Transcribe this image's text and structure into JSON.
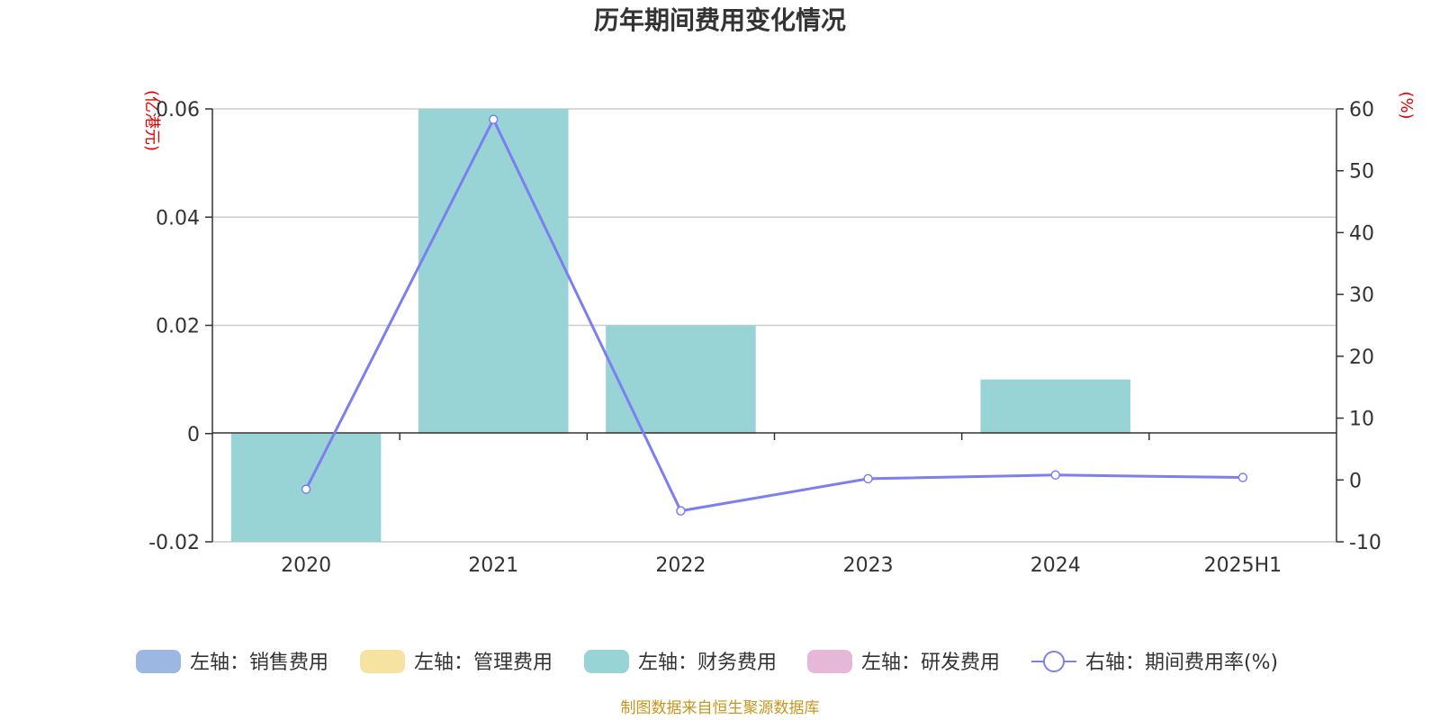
{
  "chart_data": {
    "type": "bar",
    "title": "历年期间费用变化情况",
    "categories": [
      "2020",
      "2021",
      "2022",
      "2023",
      "2024",
      "2025H1"
    ],
    "left_axis": {
      "unit_label": "(亿港元)",
      "ylim": [
        -0.02,
        0.06
      ],
      "ticks": [
        -0.02,
        0,
        0.02,
        0.04,
        0.06
      ],
      "tick_labels": [
        "-0.02",
        "0",
        "0.02",
        "0.04",
        "0.06"
      ]
    },
    "right_axis": {
      "unit_label": "(%)",
      "ylim": [
        -10,
        60
      ],
      "ticks": [
        -10,
        0,
        10,
        20,
        30,
        40,
        50,
        60
      ],
      "tick_labels": [
        "-10",
        "0",
        "10",
        "20",
        "30",
        "40",
        "50",
        "60"
      ]
    },
    "series": [
      {
        "name": "左轴：销售费用",
        "type": "bar",
        "axis": "left",
        "color": "#9cb7e2",
        "values": [
          0,
          0,
          0,
          0,
          0,
          0
        ]
      },
      {
        "name": "左轴：管理费用",
        "type": "bar",
        "axis": "left",
        "color": "#f7e3a1",
        "values": [
          0,
          0,
          0,
          0,
          0,
          0
        ]
      },
      {
        "name": "左轴：财务费用",
        "type": "bar",
        "axis": "left",
        "color": "#98d3d5",
        "values": [
          -0.02,
          0.06,
          0.02,
          0,
          0.01,
          0
        ]
      },
      {
        "name": "左轴：研发费用",
        "type": "bar",
        "axis": "left",
        "color": "#e6b8d7",
        "values": [
          0,
          0,
          0,
          0,
          0,
          0
        ]
      },
      {
        "name": "右轴：期间费用率(%)",
        "type": "line",
        "axis": "right",
        "color": "#7b7ff0",
        "values": [
          -1.5,
          58.3,
          -5,
          0.2,
          0.8,
          0.4
        ]
      }
    ],
    "grid": true,
    "legend_position": "bottom",
    "source": "制图数据来自恒生聚源数据库"
  }
}
